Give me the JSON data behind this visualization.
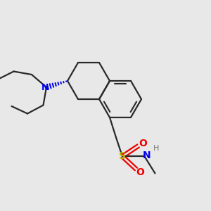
{
  "background_color": "#e8e8e8",
  "bond_color": "#2a2a2a",
  "N_color": "#0000ee",
  "S_color": "#bbbb00",
  "O_color": "#ee0000",
  "H_color": "#777777",
  "lw": 1.6,
  "figsize": [
    3.0,
    3.0
  ],
  "dpi": 100,
  "xlim": [
    -4.5,
    5.5
  ],
  "ylim": [
    -4.5,
    4.5
  ]
}
